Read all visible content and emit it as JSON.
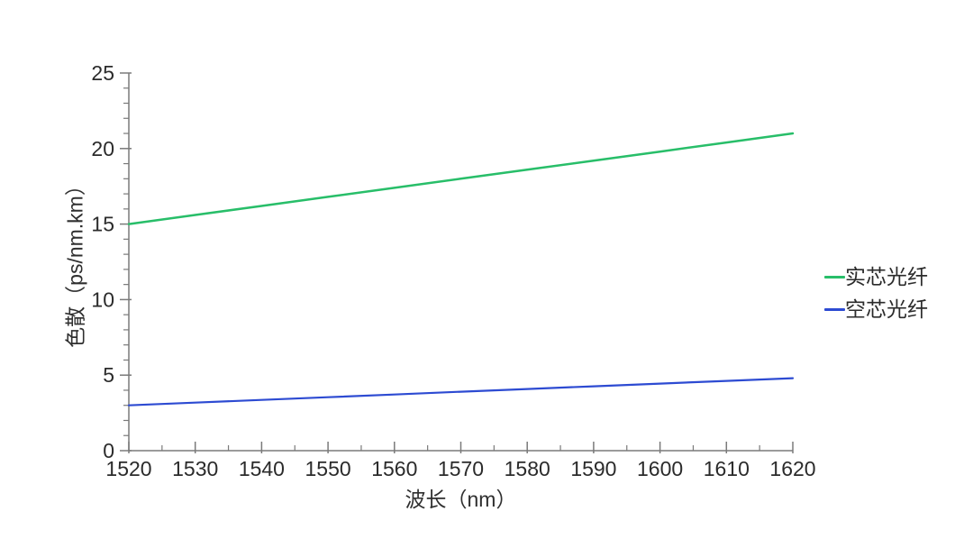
{
  "page": {
    "background": "#ffffff"
  },
  "chart_data": {
    "type": "line",
    "title": "",
    "xlabel": "波长（nm）",
    "ylabel": "色散（ps/nm.km）",
    "x": [
      1520,
      1530,
      1540,
      1550,
      1560,
      1570,
      1580,
      1590,
      1600,
      1610,
      1620
    ],
    "series": [
      {
        "name": "实芯光纤",
        "color": "#28be69",
        "line_width": 2.5,
        "values": [
          15.0,
          15.6,
          16.2,
          16.8,
          17.4,
          18.0,
          18.6,
          19.2,
          19.8,
          20.4,
          21.0
        ]
      },
      {
        "name": "空芯光纤",
        "color": "#2d4bd2",
        "line_width": 2.2,
        "values": [
          3.0,
          3.18,
          3.36,
          3.54,
          3.72,
          3.9,
          4.08,
          4.26,
          4.44,
          4.62,
          4.8
        ]
      }
    ],
    "xlim": [
      1520,
      1620
    ],
    "ylim": [
      0,
      25
    ],
    "x_major_step": 10,
    "x_minor_step": 5,
    "y_major_step": 5,
    "y_minor_step": 1,
    "x_tick_labels": [
      "1520",
      "1530",
      "1540",
      "1550",
      "1560",
      "1570",
      "1580",
      "1590",
      "1600",
      "1610",
      "1620"
    ],
    "y_tick_labels": [
      "0",
      "5",
      "10",
      "15",
      "20",
      "25"
    ],
    "grid": false,
    "legend_position": "center-right",
    "axis_color": "#7a7a7a",
    "tick_label_color": "#2b2b2b"
  }
}
